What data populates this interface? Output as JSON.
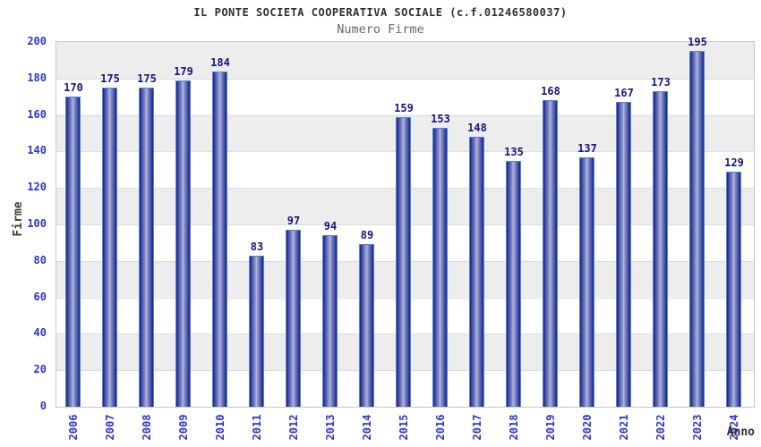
{
  "chart_data": {
    "type": "bar",
    "title": "IL PONTE SOCIETA COOPERATIVA SOCIALE (c.f.01246580037)",
    "subtitle": "Numero Firme",
    "xlabel": "Anno",
    "ylabel": "Firme",
    "categories": [
      "2006",
      "2007",
      "2008",
      "2009",
      "2010",
      "2011",
      "2012",
      "2013",
      "2014",
      "2015",
      "2016",
      "2017",
      "2018",
      "2019",
      "2020",
      "2021",
      "2022",
      "2023",
      "2024"
    ],
    "values": [
      170,
      175,
      175,
      179,
      184,
      83,
      97,
      94,
      89,
      159,
      153,
      148,
      135,
      168,
      137,
      167,
      173,
      195,
      129
    ],
    "ylim": [
      0,
      200
    ],
    "yticks": [
      0,
      20,
      40,
      60,
      80,
      100,
      120,
      140,
      160,
      180,
      200
    ],
    "grid": "horizontal-alternating-bands",
    "legend_position": "none",
    "value_labels": "above-bars",
    "colors": {
      "bar_edge": "#4d84e6",
      "bar_dark": "#20246f",
      "bar_light": "#b2b9e3",
      "value_label": "#16167d",
      "tick_label": "#2b35cc",
      "axis_title": "#3d3d3d",
      "title": "#2f2f2f",
      "subtitle": "#666666",
      "band_gray": "#ededed",
      "band_white": "#ffffff",
      "gridline": "#d9dce3",
      "plot_border": "#c9c9c9"
    }
  }
}
